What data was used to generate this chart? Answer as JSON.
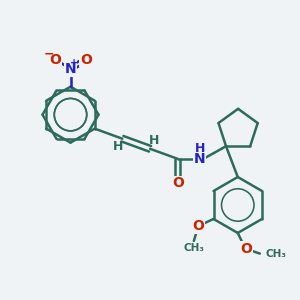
{
  "bg_color": "#f0f3f5",
  "bond_color": "#2d6b5e",
  "nitrogen_color": "#2222cc",
  "oxygen_color": "#cc2200",
  "bond_width": 1.8,
  "font_size_atom": 10,
  "font_size_h": 9,
  "xlim": [
    0,
    10
  ],
  "ylim": [
    0,
    10
  ]
}
